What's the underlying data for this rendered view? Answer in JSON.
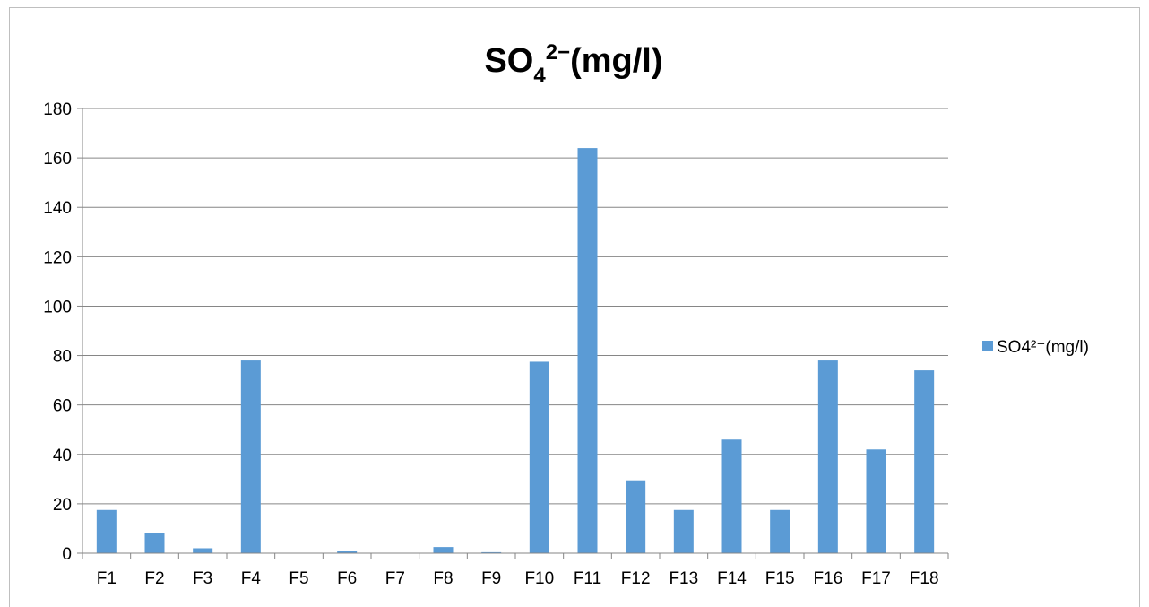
{
  "chart_data": {
    "type": "bar",
    "title": {
      "main": "SO",
      "subscript": "4",
      "superscript": "2−",
      "suffix": "(mg/l)"
    },
    "categories": [
      "F1",
      "F2",
      "F3",
      "F4",
      "F5",
      "F6",
      "F7",
      "F8",
      "F9",
      "F10",
      "F11",
      "F12",
      "F13",
      "F14",
      "F15",
      "F16",
      "F17",
      "F18"
    ],
    "series": [
      {
        "name": "SO4²⁻(mg/l)",
        "color": "#5b9bd5",
        "values": [
          17.5,
          8,
          2,
          78,
          0,
          0.8,
          0,
          2.5,
          0.4,
          77.5,
          164,
          29.5,
          17.5,
          46,
          17.5,
          78,
          42,
          74
        ]
      }
    ],
    "ylim": [
      0,
      180
    ],
    "yticks": [
      0,
      20,
      40,
      60,
      80,
      100,
      120,
      140,
      160,
      180
    ],
    "grid": true,
    "legend_position": "right",
    "gridline_color": "#868686",
    "axis_color": "#868686"
  }
}
